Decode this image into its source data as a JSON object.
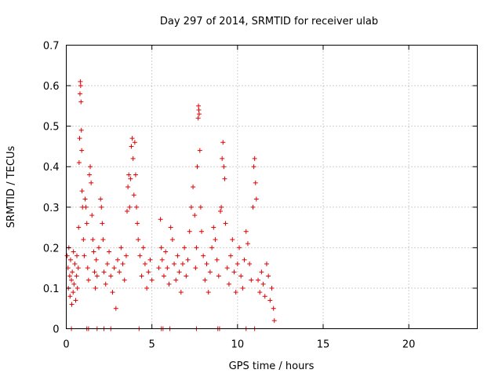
{
  "chart_data": {
    "type": "scatter",
    "title": "Day 297 of 2014, SRMTID for receiver ulab",
    "xlabel": "GPS time / hours",
    "ylabel": "SRMTID / TECUs",
    "xlim": [
      0,
      24
    ],
    "ylim": [
      0,
      0.7
    ],
    "xticks": [
      0,
      5,
      10,
      15,
      20
    ],
    "xtick_labels": [
      "0",
      "5",
      "10",
      "15",
      "20"
    ],
    "yticks": [
      0,
      0.1,
      0.2,
      0.3,
      0.4,
      0.5,
      0.6,
      0.7
    ],
    "ytick_labels": [
      "0",
      "0.1",
      "0.2",
      "0.3",
      "0.4",
      "0.5",
      "0.6",
      "0.7"
    ],
    "grid": true,
    "marker": "plus",
    "color": "#e00000",
    "series": [
      {
        "name": "SRMTID",
        "points": [
          [
            0.05,
            0.18
          ],
          [
            0.1,
            0.15
          ],
          [
            0.12,
            0.1
          ],
          [
            0.15,
            0.2
          ],
          [
            0.2,
            0.13
          ],
          [
            0.22,
            0.08
          ],
          [
            0.25,
            0.17
          ],
          [
            0.3,
            0.12
          ],
          [
            0.32,
            0.06
          ],
          [
            0.35,
            0.14
          ],
          [
            0.4,
            0.09
          ],
          [
            0.42,
            0.19
          ],
          [
            0.45,
            0.11
          ],
          [
            0.5,
            0.16
          ],
          [
            0.55,
            0.07
          ],
          [
            0.6,
            0.13
          ],
          [
            0.62,
            0.18
          ],
          [
            0.65,
            0.1
          ],
          [
            0.7,
            0.15
          ],
          [
            0.72,
            0.25
          ],
          [
            0.75,
            0.41
          ],
          [
            0.78,
            0.47
          ],
          [
            0.8,
            0.58
          ],
          [
            0.82,
            0.61
          ],
          [
            0.84,
            0.6
          ],
          [
            0.86,
            0.56
          ],
          [
            0.88,
            0.49
          ],
          [
            0.9,
            0.44
          ],
          [
            0.92,
            0.34
          ],
          [
            0.95,
            0.3
          ],
          [
            1.0,
            0.22
          ],
          [
            1.05,
            0.18
          ],
          [
            1.1,
            0.32
          ],
          [
            1.15,
            0.3
          ],
          [
            1.2,
            0.26
          ],
          [
            1.25,
            0.15
          ],
          [
            1.3,
            0.12
          ],
          [
            1.35,
            0.38
          ],
          [
            1.4,
            0.4
          ],
          [
            1.45,
            0.36
          ],
          [
            1.5,
            0.28
          ],
          [
            1.55,
            0.22
          ],
          [
            1.6,
            0.19
          ],
          [
            1.65,
            0.14
          ],
          [
            1.7,
            0.1
          ],
          [
            1.75,
            0.17
          ],
          [
            1.8,
            0.13
          ],
          [
            1.9,
            0.2
          ],
          [
            2.0,
            0.32
          ],
          [
            2.05,
            0.3
          ],
          [
            2.1,
            0.26
          ],
          [
            2.15,
            0.22
          ],
          [
            2.2,
            0.14
          ],
          [
            2.3,
            0.11
          ],
          [
            2.4,
            0.16
          ],
          [
            2.5,
            0.19
          ],
          [
            2.6,
            0.13
          ],
          [
            2.7,
            0.09
          ],
          [
            2.8,
            0.15
          ],
          [
            2.9,
            0.05
          ],
          [
            3.0,
            0.17
          ],
          [
            3.1,
            0.14
          ],
          [
            3.2,
            0.2
          ],
          [
            3.3,
            0.16
          ],
          [
            3.4,
            0.12
          ],
          [
            3.5,
            0.18
          ],
          [
            3.55,
            0.29
          ],
          [
            3.6,
            0.35
          ],
          [
            3.65,
            0.38
          ],
          [
            3.7,
            0.3
          ],
          [
            3.75,
            0.37
          ],
          [
            3.8,
            0.45
          ],
          [
            3.85,
            0.47
          ],
          [
            3.9,
            0.42
          ],
          [
            3.95,
            0.33
          ],
          [
            4.0,
            0.46
          ],
          [
            4.05,
            0.38
          ],
          [
            4.1,
            0.3
          ],
          [
            4.15,
            0.26
          ],
          [
            4.2,
            0.22
          ],
          [
            4.3,
            0.18
          ],
          [
            4.4,
            0.13
          ],
          [
            4.5,
            0.2
          ],
          [
            4.6,
            0.16
          ],
          [
            4.7,
            0.1
          ],
          [
            4.8,
            0.14
          ],
          [
            4.9,
            0.17
          ],
          [
            5.0,
            0.12
          ],
          [
            5.4,
            0.15
          ],
          [
            5.5,
            0.27
          ],
          [
            5.55,
            0.2
          ],
          [
            5.6,
            0.17
          ],
          [
            5.7,
            0.13
          ],
          [
            5.8,
            0.19
          ],
          [
            5.9,
            0.15
          ],
          [
            6.0,
            0.11
          ],
          [
            6.1,
            0.25
          ],
          [
            6.2,
            0.22
          ],
          [
            6.3,
            0.16
          ],
          [
            6.4,
            0.12
          ],
          [
            6.5,
            0.18
          ],
          [
            6.6,
            0.14
          ],
          [
            6.7,
            0.09
          ],
          [
            6.8,
            0.16
          ],
          [
            6.9,
            0.2
          ],
          [
            7.0,
            0.13
          ],
          [
            7.1,
            0.17
          ],
          [
            7.2,
            0.24
          ],
          [
            7.3,
            0.3
          ],
          [
            7.4,
            0.35
          ],
          [
            7.5,
            0.28
          ],
          [
            7.55,
            0.15
          ],
          [
            7.6,
            0.2
          ],
          [
            7.65,
            0.4
          ],
          [
            7.7,
            0.52
          ],
          [
            7.72,
            0.55
          ],
          [
            7.74,
            0.54
          ],
          [
            7.76,
            0.53
          ],
          [
            7.8,
            0.44
          ],
          [
            7.85,
            0.3
          ],
          [
            7.9,
            0.24
          ],
          [
            8.0,
            0.18
          ],
          [
            8.1,
            0.12
          ],
          [
            8.2,
            0.16
          ],
          [
            8.3,
            0.09
          ],
          [
            8.4,
            0.14
          ],
          [
            8.5,
            0.2
          ],
          [
            8.6,
            0.25
          ],
          [
            8.7,
            0.22
          ],
          [
            8.8,
            0.17
          ],
          [
            8.9,
            0.13
          ],
          [
            9.0,
            0.29
          ],
          [
            9.05,
            0.3
          ],
          [
            9.1,
            0.42
          ],
          [
            9.15,
            0.46
          ],
          [
            9.2,
            0.4
          ],
          [
            9.25,
            0.37
          ],
          [
            9.3,
            0.26
          ],
          [
            9.4,
            0.15
          ],
          [
            9.5,
            0.11
          ],
          [
            9.6,
            0.18
          ],
          [
            9.7,
            0.22
          ],
          [
            9.8,
            0.14
          ],
          [
            9.9,
            0.09
          ],
          [
            10.0,
            0.16
          ],
          [
            10.1,
            0.2
          ],
          [
            10.2,
            0.13
          ],
          [
            10.3,
            0.1
          ],
          [
            10.4,
            0.17
          ],
          [
            10.5,
            0.24
          ],
          [
            10.6,
            0.21
          ],
          [
            10.7,
            0.16
          ],
          [
            10.8,
            0.12
          ],
          [
            10.9,
            0.3
          ],
          [
            10.95,
            0.4
          ],
          [
            11.0,
            0.42
          ],
          [
            11.05,
            0.36
          ],
          [
            11.1,
            0.32
          ],
          [
            11.2,
            0.12
          ],
          [
            11.3,
            0.09
          ],
          [
            11.4,
            0.14
          ],
          [
            11.5,
            0.11
          ],
          [
            11.6,
            0.08
          ],
          [
            11.7,
            0.16
          ],
          [
            11.8,
            0.13
          ],
          [
            11.9,
            0.07
          ],
          [
            12.0,
            0.1
          ],
          [
            12.1,
            0.05
          ],
          [
            12.15,
            0.02
          ],
          [
            0.3,
            0.0
          ],
          [
            1.2,
            0.0
          ],
          [
            1.3,
            0.0
          ],
          [
            1.8,
            0.0
          ],
          [
            2.2,
            0.0
          ],
          [
            2.6,
            0.0
          ],
          [
            4.25,
            0.0
          ],
          [
            5.55,
            0.0
          ],
          [
            5.65,
            0.0
          ],
          [
            6.05,
            0.0
          ],
          [
            7.6,
            0.0
          ],
          [
            8.85,
            0.0
          ],
          [
            8.95,
            0.0
          ],
          [
            10.5,
            0.0
          ],
          [
            11.0,
            0.0
          ]
        ]
      }
    ]
  }
}
